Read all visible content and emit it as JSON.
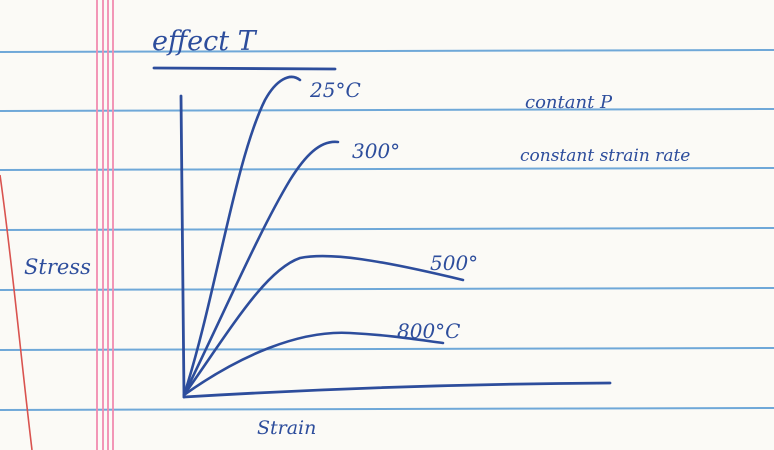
{
  "page": {
    "heading": "effect T",
    "notes": [
      "contant P",
      "constant strain rate"
    ]
  },
  "chart_data": {
    "type": "line",
    "title": "effect T",
    "xlabel": "Strain",
    "ylabel": "Stress",
    "grid": false,
    "series": [
      {
        "name": "25°C",
        "label": "25°C"
      },
      {
        "name": "300°",
        "label": "300°"
      },
      {
        "name": "500°",
        "label": "500°"
      },
      {
        "name": "800°C",
        "label": "800°C"
      }
    ]
  },
  "colors": {
    "ink": "#2d4d9c",
    "rule_lines": "#6fa8d8",
    "margin_lines": "#f28bb0",
    "red_margin": "#d9534f",
    "paper": "#fbfaf6"
  }
}
